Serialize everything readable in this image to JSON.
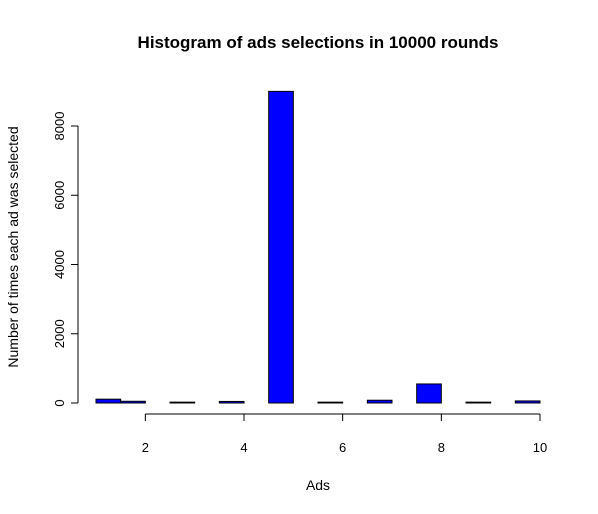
{
  "chart_data": {
    "type": "bar",
    "title": "Histogram of ads selections in 10000 rounds",
    "xlabel": "Ads",
    "ylabel": "Number of times each ad was selected",
    "x_bins": [
      {
        "from": 1.0,
        "to": 1.5,
        "value": 110
      },
      {
        "from": 1.5,
        "to": 2.0,
        "value": 50
      },
      {
        "from": 2.5,
        "to": 3.0,
        "value": 25
      },
      {
        "from": 3.5,
        "to": 4.0,
        "value": 45
      },
      {
        "from": 4.5,
        "to": 5.0,
        "value": 9000
      },
      {
        "from": 5.5,
        "to": 6.0,
        "value": 25
      },
      {
        "from": 6.5,
        "to": 7.0,
        "value": 80
      },
      {
        "from": 7.5,
        "to": 8.0,
        "value": 550
      },
      {
        "from": 8.5,
        "to": 9.0,
        "value": 25
      },
      {
        "from": 9.5,
        "to": 10.0,
        "value": 60
      }
    ],
    "xlim": [
      1,
      10
    ],
    "ylim": [
      0,
      9000
    ],
    "x_ticks": [
      2,
      4,
      6,
      8,
      10
    ],
    "y_ticks": [
      0,
      2000,
      4000,
      6000,
      8000
    ],
    "bar_color": "#0000ff",
    "grid": false,
    "legend": "none"
  }
}
